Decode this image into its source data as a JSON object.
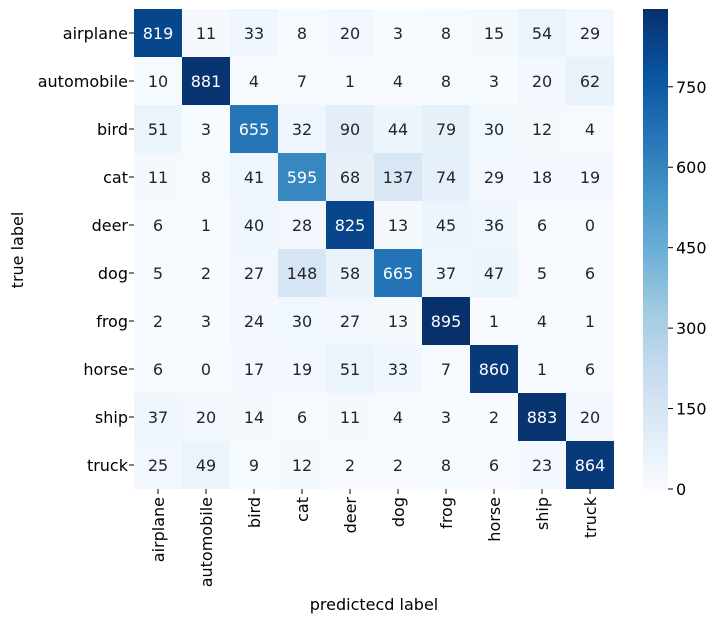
{
  "chart_data": {
    "type": "heatmap",
    "title": "",
    "xlabel": "predictecd label",
    "ylabel": "true label",
    "x_categories": [
      "airplane",
      "automobile",
      "bird",
      "cat",
      "deer",
      "dog",
      "frog",
      "horse",
      "ship",
      "truck"
    ],
    "y_categories": [
      "airplane",
      "automobile",
      "bird",
      "cat",
      "deer",
      "dog",
      "frog",
      "horse",
      "ship",
      "truck"
    ],
    "values": [
      [
        819,
        11,
        33,
        8,
        20,
        3,
        8,
        15,
        54,
        29
      ],
      [
        10,
        881,
        4,
        7,
        1,
        4,
        8,
        3,
        20,
        62
      ],
      [
        51,
        3,
        655,
        32,
        90,
        44,
        79,
        30,
        12,
        4
      ],
      [
        11,
        8,
        41,
        595,
        68,
        137,
        74,
        29,
        18,
        19
      ],
      [
        6,
        1,
        40,
        28,
        825,
        13,
        45,
        36,
        6,
        0
      ],
      [
        5,
        2,
        27,
        148,
        58,
        665,
        37,
        47,
        5,
        6
      ],
      [
        2,
        3,
        24,
        30,
        27,
        13,
        895,
        1,
        4,
        1
      ],
      [
        6,
        0,
        17,
        19,
        51,
        33,
        7,
        860,
        1,
        6
      ],
      [
        37,
        20,
        14,
        6,
        11,
        4,
        3,
        2,
        883,
        20
      ],
      [
        25,
        49,
        9,
        12,
        2,
        2,
        8,
        6,
        23,
        864
      ]
    ],
    "colorbar": {
      "colormap": "Blues",
      "range": [
        0,
        895
      ],
      "ticks": [
        0,
        150,
        300,
        450,
        600,
        750
      ]
    },
    "annotations": true,
    "grid": false,
    "legend": "colorbar-right"
  }
}
